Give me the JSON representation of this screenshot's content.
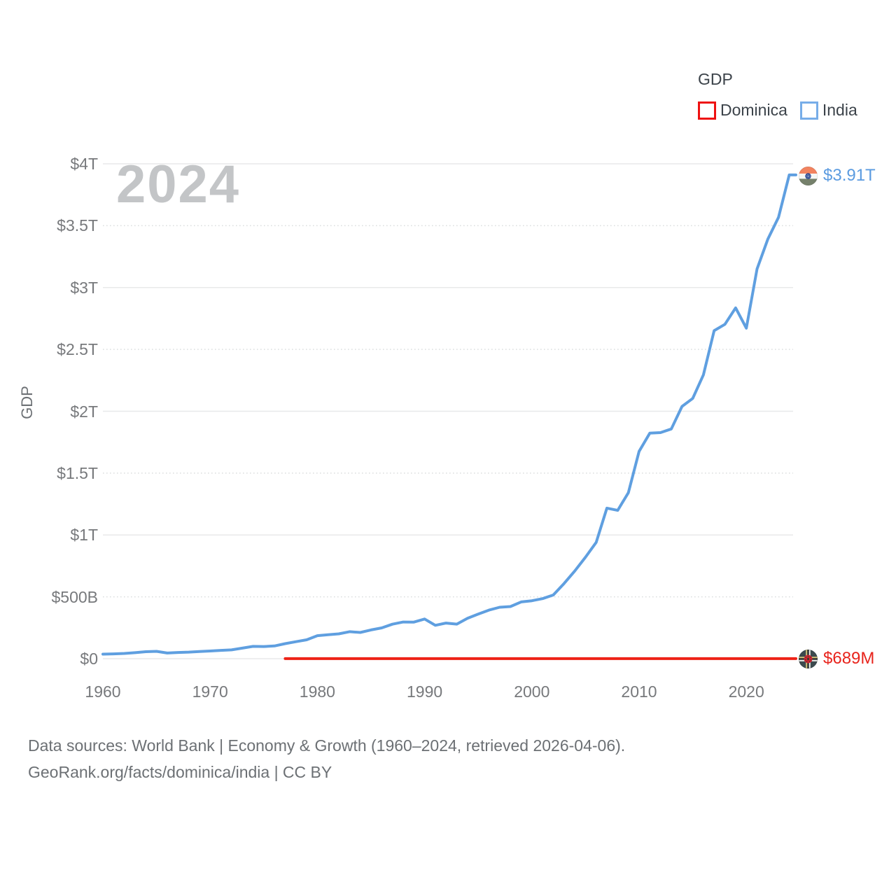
{
  "legend": {
    "title": "GDP",
    "items": [
      {
        "label": "Dominica",
        "color": "#ee1111"
      },
      {
        "label": "India",
        "color": "#77ade8"
      }
    ]
  },
  "footer": {
    "line1": "Data sources: World Bank | Economy & Growth (1960–2024, retrieved 2026-04-06).",
    "line2": "GeoRank.org/facts/dominica/india | CC BY"
  },
  "chart_data": {
    "type": "line",
    "title": "GDP",
    "xlabel": "",
    "ylabel": "GDP",
    "watermark": "2024",
    "grid": true,
    "legend_position": "top-right",
    "x_axis": {
      "ticks": [
        1960,
        1970,
        1980,
        1990,
        2000,
        2010,
        2020
      ],
      "range": [
        1960,
        2024.6
      ]
    },
    "y_axis": {
      "range_billions": [
        0,
        4000
      ],
      "ticks": [
        {
          "label": "$4T",
          "billions": 4000,
          "grid": "solid"
        },
        {
          "label": "$3.5T",
          "billions": 3500,
          "grid": "dotted"
        },
        {
          "label": "$3T",
          "billions": 3000,
          "grid": "solid"
        },
        {
          "label": "$2.5T",
          "billions": 2500,
          "grid": "dotted"
        },
        {
          "label": "$2T",
          "billions": 2000,
          "grid": "solid"
        },
        {
          "label": "$1.5T",
          "billions": 1500,
          "grid": "dotted"
        },
        {
          "label": "$1T",
          "billions": 1000,
          "grid": "solid"
        },
        {
          "label": "$500B",
          "billions": 500,
          "grid": "dotted"
        },
        {
          "label": "$0",
          "billions": 0,
          "grid": "solid"
        }
      ]
    },
    "series": [
      {
        "name": "India",
        "color": "#5f9fe0",
        "end_label": "$3.91T",
        "flag_icon": "india-flag-icon",
        "years": [
          1960,
          1961,
          1962,
          1963,
          1964,
          1965,
          1966,
          1967,
          1968,
          1969,
          1970,
          1971,
          1972,
          1973,
          1974,
          1975,
          1976,
          1977,
          1978,
          1979,
          1980,
          1981,
          1982,
          1983,
          1984,
          1985,
          1986,
          1987,
          1988,
          1989,
          1990,
          1991,
          1992,
          1993,
          1994,
          1995,
          1996,
          1997,
          1998,
          1999,
          2000,
          2001,
          2002,
          2003,
          2004,
          2005,
          2006,
          2007,
          2008,
          2009,
          2010,
          2011,
          2012,
          2013,
          2014,
          2015,
          2016,
          2017,
          2018,
          2019,
          2020,
          2021,
          2022,
          2023,
          2024
        ],
        "gdp_billions": [
          37.03,
          39.23,
          42.16,
          48.42,
          56.48,
          59.55,
          45.87,
          50.13,
          53.09,
          58.45,
          62.42,
          67.35,
          71.46,
          85.52,
          99.53,
          98.47,
          102.72,
          121.49,
          137.3,
          152.99,
          186.32,
          193.49,
          200.72,
          218.26,
          212.16,
          232.51,
          248.99,
          279.03,
          296.59,
          296.04,
          320.98,
          270.11,
          288.21,
          279.3,
          327.28,
          360.28,
          392.9,
          415.87,
          421.35,
          458.82,
          468.39,
          485.44,
          514.94,
          607.7,
          709.15,
          820.38,
          940.26,
          1216.74,
          1198.9,
          1341.89,
          1675.62,
          1823.05,
          1827.64,
          1856.72,
          2039.13,
          2103.59,
          2294.8,
          2651.47,
          2702.93,
          2835.61,
          2671.6,
          3150.31,
          3389.69,
          3567.55,
          3910.0
        ]
      },
      {
        "name": "Dominica",
        "color": "#ee2217",
        "end_label": "$689M",
        "flag_icon": "dominica-flag-icon",
        "start_year": 1977,
        "end_year": 2024,
        "end_value_millions": 689,
        "note": "Series renders flat at ~$0 on the trillion-dollar axis"
      }
    ]
  }
}
